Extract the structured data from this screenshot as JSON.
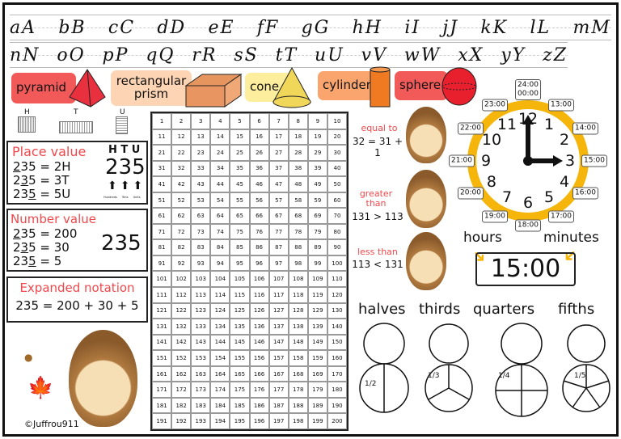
{
  "cursive": {
    "row1": [
      "aA",
      "bB",
      "cC",
      "dD",
      "eE",
      "fF",
      "gG",
      "hH",
      "iI",
      "jJ",
      "kK",
      "lL",
      "mM"
    ],
    "row2": [
      "nN",
      "oO",
      "pP",
      "qQ",
      "rR",
      "sS",
      "tT",
      "uU",
      "vV",
      "wW",
      "xX",
      "yY",
      "zZ"
    ]
  },
  "shapes": [
    {
      "label": "pyramid",
      "color": "#f25a5a"
    },
    {
      "label": "rectangular prism",
      "color": "#fdd5b4"
    },
    {
      "label": "cone",
      "color": "#fcee9c"
    },
    {
      "label": "cylinder",
      "color": "#f9a56d"
    },
    {
      "label": "sphere",
      "color": "#f25a5a"
    }
  ],
  "blocks": {
    "h": "H",
    "t": "T",
    "u": "U"
  },
  "place_value": {
    "title": "Place value",
    "lines": [
      {
        "pre": "",
        "digit": "2",
        "post": "35 = 2H"
      },
      {
        "pre": "2",
        "digit": "3",
        "post": "5 = 3T"
      },
      {
        "pre": "23",
        "digit": "5",
        "post": " = 5U"
      }
    ],
    "htu": "H T U",
    "number": "235",
    "arrow_labels": [
      "Hundreds",
      "Tens",
      "Units"
    ]
  },
  "number_value": {
    "title": "Number value",
    "lines": [
      {
        "pre": "",
        "digit": "2",
        "post": "35 = 200"
      },
      {
        "pre": "2",
        "digit": "3",
        "post": "5 = 30"
      },
      {
        "pre": "23",
        "digit": "5",
        "post": " = 5"
      }
    ],
    "number": "235"
  },
  "expanded": {
    "title": "Expanded notation",
    "equation": "235 = 200 + 30 + 5"
  },
  "copyright": "©Juffrou911",
  "hundred_chart": {
    "start": 1,
    "end": 200,
    "columns": 10
  },
  "comparisons": [
    {
      "label": "equal to",
      "example": "32 = 31 + 1"
    },
    {
      "label": "greater than",
      "example": "131 > 113"
    },
    {
      "label": "less than",
      "example": "113 < 131"
    }
  ],
  "clock": {
    "numbers": [
      "12",
      "1",
      "2",
      "3",
      "4",
      "5",
      "6",
      "7",
      "8",
      "9",
      "10",
      "11"
    ],
    "hours24": [
      "24:00\n00:00",
      "13:00",
      "14:00",
      "15:00",
      "16:00",
      "17:00",
      "18:00",
      "19:00",
      "20:00",
      "21:00",
      "22:00",
      "23:00"
    ],
    "ring_color": "#f5b50a",
    "hours_label": "hours",
    "minutes_label": "minutes",
    "digital": "15:00"
  },
  "fractions": [
    {
      "title": "halves",
      "fraction": "1/2"
    },
    {
      "title": "thirds",
      "fraction": "1/3"
    },
    {
      "title": "quarters",
      "fraction": "1/4"
    },
    {
      "title": "fifths",
      "fraction": "1/5"
    }
  ]
}
